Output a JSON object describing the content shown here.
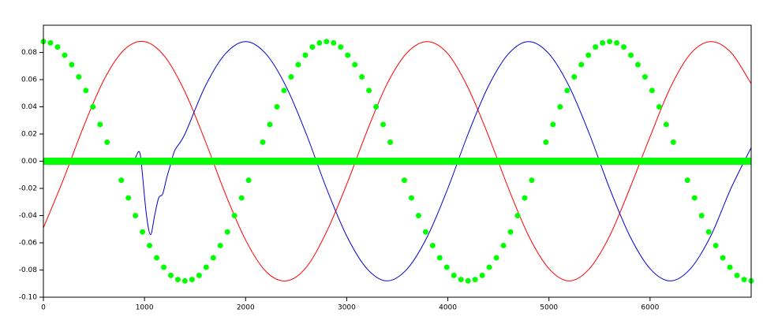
{
  "chart_data": {
    "type": "line",
    "xlim": [
      0,
      7000
    ],
    "ylim": [
      -0.1,
      0.1
    ],
    "xticks": [
      0,
      1000,
      2000,
      3000,
      4000,
      5000,
      6000
    ],
    "yticks": [
      {
        "value": -0.1,
        "label": "-0.10"
      },
      -0.08,
      -0.06,
      -0.04,
      -0.02,
      {
        "value": 0,
        "label": "0.00"
      },
      0.02,
      0.04,
      0.06,
      0.08
    ],
    "series": [
      {
        "color": "#ff0000",
        "style": "line",
        "width": 1,
        "x": [
          0,
          200,
          400,
          600,
          800,
          1000,
          1200,
          1400,
          1600,
          1800,
          2000,
          2200,
          2400,
          2600,
          2800,
          3000,
          3200,
          3400,
          3600,
          3800,
          4000,
          4200,
          4400,
          4600,
          4800,
          5000,
          5200,
          5400,
          5600,
          5800,
          6000,
          6200,
          6400,
          6600,
          6800,
          7000
        ],
        "values": [
          -0.049,
          -0.013,
          0.026,
          0.06,
          0.082,
          0.088,
          0.077,
          0.051,
          0.015,
          -0.024,
          -0.058,
          -0.081,
          -0.088,
          -0.078,
          -0.052,
          -0.017,
          0.022,
          0.057,
          0.08,
          0.088,
          0.079,
          0.054,
          0.019,
          -0.02,
          -0.055,
          -0.079,
          -0.088,
          -0.079,
          -0.055,
          -0.02,
          0.018,
          0.054,
          0.079,
          0.088,
          0.08,
          0.057
        ]
      },
      {
        "color": "#0000cc",
        "style": "line",
        "width": 1,
        "x": [
          0,
          800,
          860,
          900,
          940,
          960,
          980,
          1020,
          1060,
          1100,
          1140,
          1180,
          1220,
          1260,
          1300,
          1400,
          1600,
          1800,
          2000,
          2200,
          2400,
          2600,
          2800,
          3000,
          3200,
          3400,
          3600,
          3800,
          4000,
          4200,
          4400,
          4600,
          4800,
          5000,
          5200,
          5400,
          5600,
          5800,
          6000,
          6200,
          6400,
          6600,
          6800,
          7000
        ],
        "values": [
          0,
          0,
          -0.002,
          0.001,
          0.007,
          0.004,
          -0.01,
          -0.04,
          -0.054,
          -0.04,
          -0.027,
          -0.024,
          -0.012,
          -0.002,
          0.008,
          0.02,
          0.055,
          0.079,
          0.088,
          0.079,
          0.055,
          0.02,
          -0.02,
          -0.055,
          -0.079,
          -0.088,
          -0.079,
          -0.055,
          -0.02,
          0.02,
          0.055,
          0.079,
          0.088,
          0.079,
          0.055,
          0.02,
          -0.02,
          -0.055,
          -0.079,
          -0.088,
          -0.079,
          -0.055,
          -0.02,
          0.01
        ]
      },
      {
        "color": "#00ff00",
        "style": "line",
        "width": 9,
        "x": [
          0,
          7000
        ],
        "values": [
          0,
          0
        ]
      },
      {
        "color": "#00ff00",
        "style": "dots",
        "width": 7,
        "x": [
          0,
          70,
          140,
          210,
          280,
          350,
          420,
          490,
          560,
          630,
          700,
          770,
          840,
          910,
          980,
          1050,
          1120,
          1190,
          1260,
          1330,
          1400,
          1470,
          1540,
          1610,
          1680,
          1750,
          1820,
          1890,
          1960,
          2030,
          2100,
          2170,
          2240,
          2310,
          2380,
          2450,
          2520,
          2590,
          2660,
          2730,
          2800,
          2870,
          2940,
          3010,
          3080,
          3150,
          3220,
          3290,
          3360,
          3430,
          3500,
          3570,
          3640,
          3710,
          3780,
          3850,
          3920,
          3990,
          4060,
          4130,
          4200,
          4270,
          4340,
          4410,
          4480,
          4550,
          4620,
          4690,
          4760,
          4830,
          4900,
          4970,
          5040,
          5110,
          5180,
          5250,
          5320,
          5390,
          5460,
          5530,
          5600,
          5670,
          5740,
          5810,
          5880,
          5950,
          6020,
          6090,
          6160,
          6230,
          6300,
          6370,
          6440,
          6510,
          6580,
          6650,
          6720,
          6790,
          6860,
          6930,
          7000
        ],
        "values": [
          0.088,
          0.087,
          0.084,
          0.078,
          0.071,
          0.062,
          0.052,
          0.04,
          0.027,
          0.014,
          0,
          -0.014,
          -0.027,
          -0.04,
          -0.052,
          -0.062,
          -0.071,
          -0.078,
          -0.084,
          -0.087,
          -0.088,
          -0.087,
          -0.084,
          -0.078,
          -0.071,
          -0.062,
          -0.052,
          -0.04,
          -0.027,
          -0.014,
          0,
          0.014,
          0.027,
          0.04,
          0.052,
          0.062,
          0.071,
          0.078,
          0.084,
          0.087,
          0.088,
          0.087,
          0.084,
          0.078,
          0.071,
          0.062,
          0.052,
          0.04,
          0.027,
          0.014,
          0,
          -0.014,
          -0.027,
          -0.04,
          -0.052,
          -0.062,
          -0.071,
          -0.078,
          -0.084,
          -0.087,
          -0.088,
          -0.087,
          -0.084,
          -0.078,
          -0.071,
          -0.062,
          -0.052,
          -0.04,
          -0.027,
          -0.014,
          0,
          0.014,
          0.027,
          0.04,
          0.052,
          0.062,
          0.071,
          0.078,
          0.084,
          0.087,
          0.088,
          0.087,
          0.084,
          0.078,
          0.071,
          0.062,
          0.052,
          0.04,
          0.027,
          0.014,
          0,
          -0.014,
          -0.027,
          -0.04,
          -0.052,
          -0.062,
          -0.071,
          -0.078,
          -0.084,
          -0.087,
          -0.088
        ]
      }
    ]
  }
}
